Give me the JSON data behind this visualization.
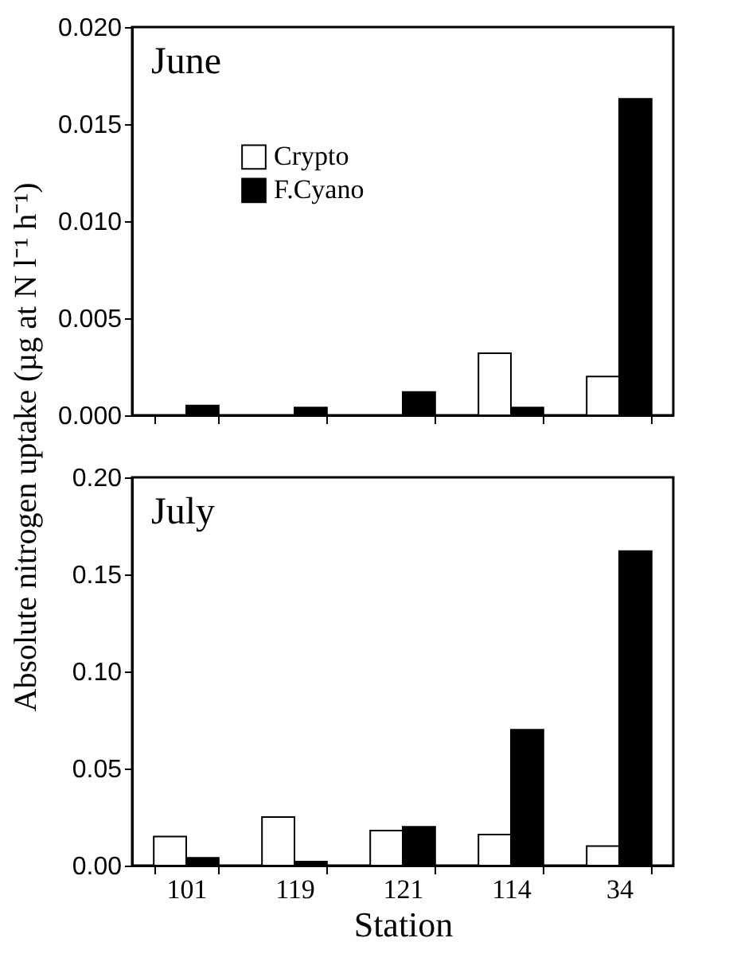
{
  "chart_data": [
    {
      "type": "bar",
      "title": "June",
      "ylabel": "Absolute nitrogen uptake (µg at N l⁻¹ h⁻¹)",
      "categories": [
        "101",
        "119",
        "121",
        "114",
        "34"
      ],
      "series": [
        {
          "name": "Crypto",
          "color": "#ffffff",
          "values": [
            null,
            null,
            null,
            0.0032,
            0.002
          ]
        },
        {
          "name": "F.Cyano",
          "color": "#000000",
          "values": [
            0.0005,
            0.0004,
            0.0012,
            0.0004,
            0.0163
          ]
        }
      ],
      "ylim": [
        0,
        0.02
      ],
      "yticks": [
        {
          "value": 0,
          "label": "0.000"
        },
        0.005,
        {
          "value": 0.01,
          "label": "0.010"
        },
        0.015,
        {
          "value": 0.02,
          "label": "0.020"
        }
      ],
      "legend": "top left",
      "tick_labels": "y"
    },
    {
      "type": "bar",
      "title": "July",
      "xlabel": "Station",
      "categories": [
        "101",
        "119",
        "121",
        "114",
        "34"
      ],
      "series": [
        {
          "color": "#ffffff",
          "values": [
            0.015,
            0.025,
            0.018,
            0.016,
            0.01
          ]
        },
        {
          "color": "#000000",
          "values": [
            0.004,
            0.002,
            0.02,
            0.07,
            0.162
          ]
        }
      ],
      "ylim": [
        0,
        0.2
      ],
      "yticks": [
        {
          "value": 0,
          "label": "0.00"
        },
        0.05,
        {
          "value": 0.1,
          "label": "0.10"
        },
        0.15,
        {
          "value": 0.2,
          "label": "0.20"
        }
      ]
    }
  ]
}
